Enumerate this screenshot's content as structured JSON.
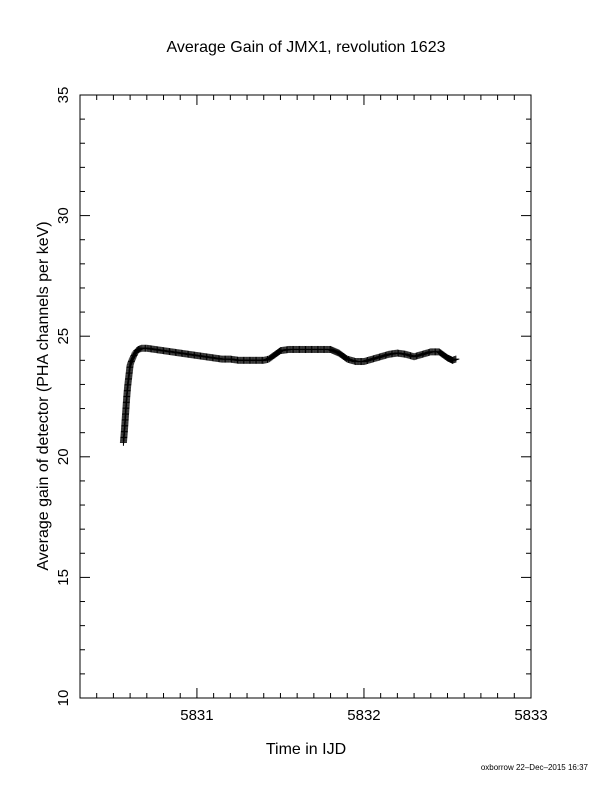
{
  "chart_data": {
    "type": "scatter",
    "title": "Average Gain of JMX1, revolution 1623",
    "xlabel": "Time in IJD",
    "ylabel": "Average gain of detector (PHA channels per keV)",
    "xlim": [
      5830.3,
      5833.0
    ],
    "ylim": [
      10,
      35
    ],
    "x_ticks": [
      "5831",
      "5832",
      "5833"
    ],
    "x_tick_values": [
      5831,
      5832,
      5833
    ],
    "x_minor_step": 0.1,
    "y_ticks": [
      "10",
      "15",
      "20",
      "25",
      "30",
      "35"
    ],
    "y_tick_values": [
      10,
      15,
      20,
      25,
      30,
      35
    ],
    "y_minor_step": 1,
    "grid": false,
    "marker": "plus",
    "color": "#000000",
    "series": [
      {
        "x": [
          5830.56,
          5830.565,
          5830.57,
          5830.575,
          5830.58,
          5830.585,
          5830.59,
          5830.595,
          5830.6,
          5830.61,
          5830.62,
          5830.63,
          5830.64,
          5830.65,
          5830.67,
          5830.7,
          5830.75,
          5830.8,
          5830.85,
          5830.9,
          5830.95,
          5831.0,
          5831.05,
          5831.1,
          5831.15,
          5831.2,
          5831.25,
          5831.3,
          5831.35,
          5831.4,
          5831.43,
          5831.46,
          5831.5,
          5831.55,
          5831.6,
          5831.65,
          5831.7,
          5831.75,
          5831.8,
          5831.85,
          5831.9,
          5831.95,
          5832.0,
          5832.05,
          5832.1,
          5832.15,
          5832.2,
          5832.25,
          5832.3,
          5832.35,
          5832.4,
          5832.45,
          5832.5,
          5832.53,
          5832.55
        ],
        "y": [
          20.6,
          21.0,
          21.5,
          22.0,
          22.5,
          22.9,
          23.2,
          23.5,
          23.8,
          24.0,
          24.15,
          24.3,
          24.4,
          24.45,
          24.5,
          24.5,
          24.45,
          24.4,
          24.35,
          24.3,
          24.25,
          24.2,
          24.15,
          24.1,
          24.05,
          24.05,
          24.0,
          24.0,
          24.0,
          24.0,
          24.05,
          24.2,
          24.4,
          24.45,
          24.45,
          24.45,
          24.45,
          24.45,
          24.45,
          24.3,
          24.05,
          23.95,
          23.95,
          24.05,
          24.15,
          24.25,
          24.3,
          24.25,
          24.15,
          24.25,
          24.35,
          24.35,
          24.1,
          24.0,
          24.05
        ]
      }
    ]
  },
  "footer": {
    "signature": "oxborrow 22–Dec–2015 16:37"
  }
}
